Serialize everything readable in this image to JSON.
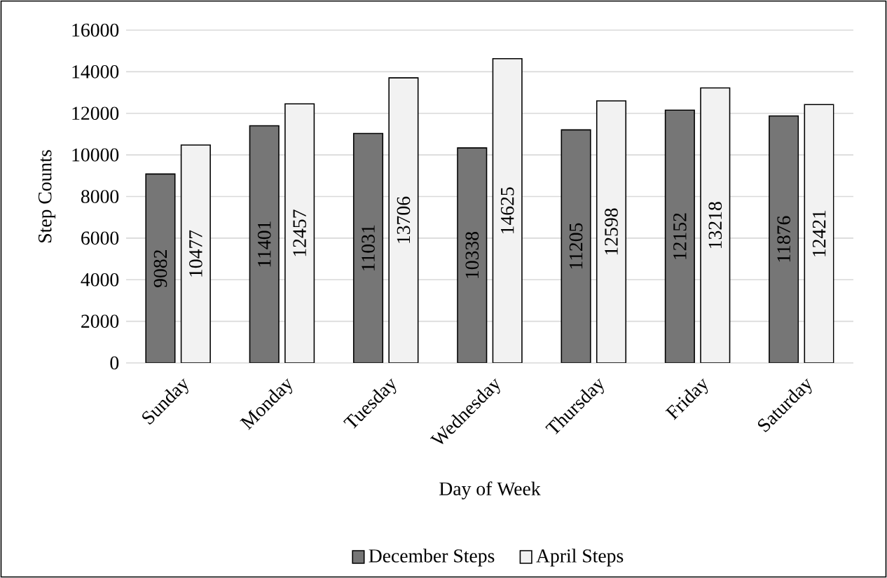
{
  "chart_data": {
    "type": "bar",
    "xlabel": "Day of Week",
    "ylabel": "Step Counts",
    "categories": [
      "Sunday",
      "Monday",
      "Tuesday",
      "Wednesday",
      "Thursday",
      "Friday",
      "Saturday"
    ],
    "series": [
      {
        "name": "December Steps",
        "color": "#767676",
        "values": [
          9082,
          11401,
          11031,
          10338,
          11205,
          12152,
          11876
        ]
      },
      {
        "name": "April Steps",
        "color": "#f2f2f2",
        "values": [
          10477,
          12457,
          13706,
          14625,
          12598,
          13218,
          12421
        ]
      }
    ],
    "ylim": [
      0,
      16000
    ],
    "yticks": [
      0,
      2000,
      4000,
      6000,
      8000,
      10000,
      12000,
      14000,
      16000
    ],
    "grid": "y",
    "legend": "bottom",
    "data_labels": true
  }
}
